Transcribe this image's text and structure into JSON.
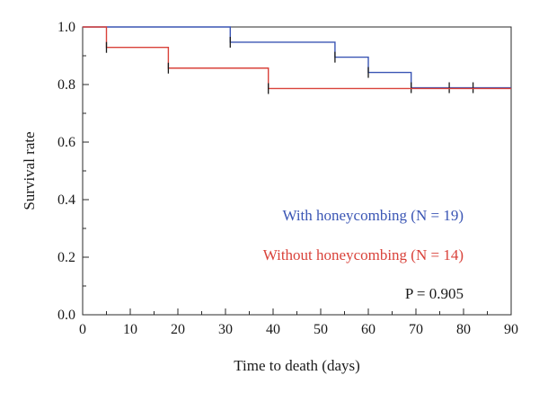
{
  "chart_data": {
    "type": "line",
    "step": true,
    "xlabel": "Time to death (days)",
    "ylabel": "Survival rate",
    "xlim": [
      0,
      90
    ],
    "ylim": [
      0.0,
      1.0
    ],
    "xticks": [
      "0",
      "10",
      "20",
      "30",
      "40",
      "50",
      "60",
      "70",
      "80",
      "90"
    ],
    "yticks": [
      "0.0",
      "0.2",
      "0.4",
      "0.6",
      "0.8",
      "1.0"
    ],
    "grid": false,
    "series": [
      {
        "name": "With honeycombing (N = 19)",
        "color": "#3a55b4",
        "x": [
          0,
          31,
          53,
          60,
          69,
          90
        ],
        "y": [
          1.0,
          0.947,
          0.895,
          0.842,
          0.789,
          0.789
        ],
        "censored_x": [
          31,
          53,
          60,
          69,
          77,
          82
        ]
      },
      {
        "name": "Without honeycombing (N = 14)",
        "color": "#d9423a",
        "x": [
          0,
          5,
          18,
          39,
          90
        ],
        "y": [
          1.0,
          0.929,
          0.857,
          0.786,
          0.786
        ],
        "censored_x": [
          5,
          18,
          39
        ]
      }
    ],
    "annotation": "P = 0.905"
  }
}
